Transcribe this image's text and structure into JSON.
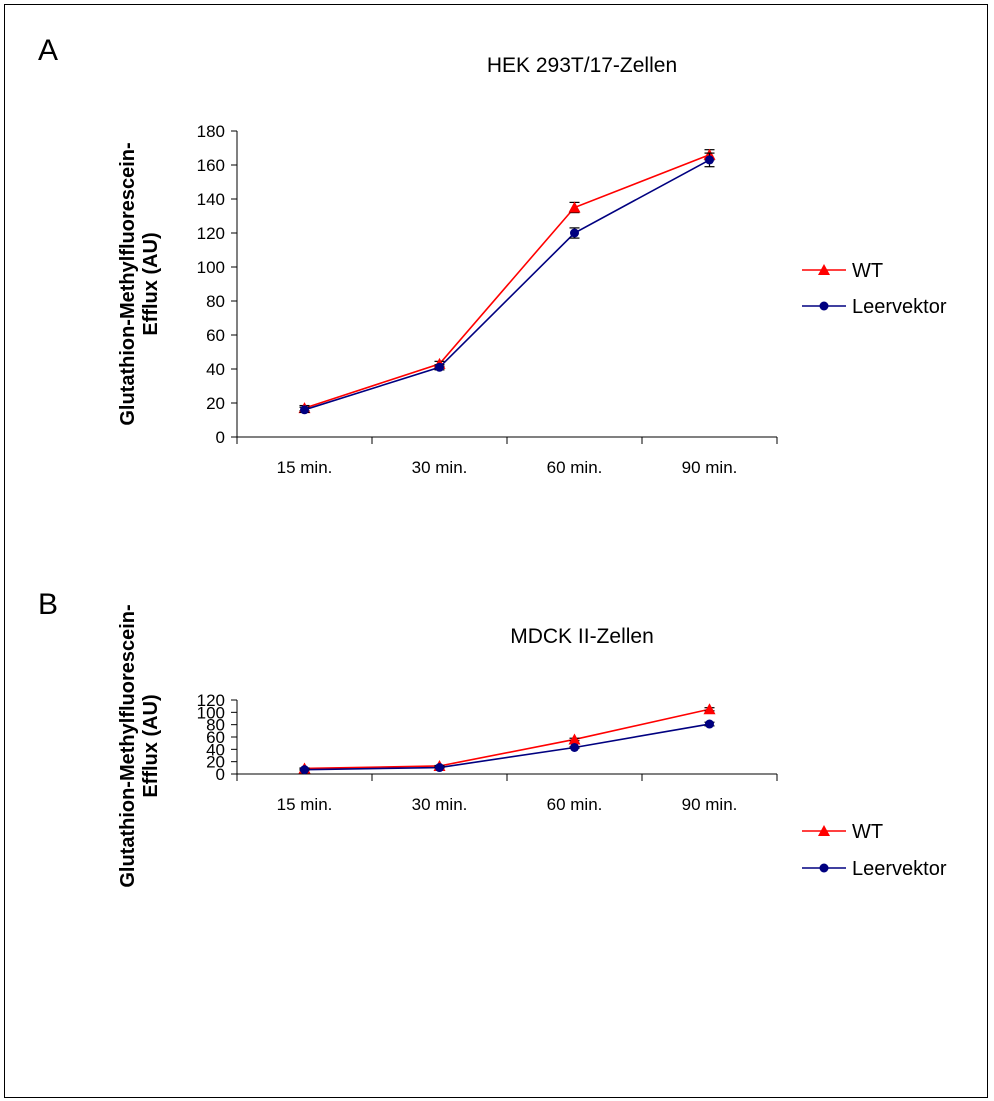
{
  "panels": [
    {
      "letter": "A",
      "legend": [
        "WT",
        "Leervektor"
      ],
      "chart_data": {
        "type": "line",
        "title": "HEK 293T/17-Zellen",
        "ylabel_line1": "Glutathion-Methylfluorescein-",
        "ylabel_line2": "Efflux (AU)",
        "categories": [
          "15 min.",
          "30 min.",
          "60 min.",
          "90 min."
        ],
        "ylim": [
          0,
          180
        ],
        "yticks": [
          0,
          20,
          40,
          60,
          80,
          100,
          120,
          140,
          160,
          180
        ],
        "legend_position": "right",
        "series": [
          {
            "name": "WT",
            "color": "#ff0000",
            "marker": "triangle",
            "values": [
              17,
              43,
              135,
              166
            ],
            "errors": [
              1.5,
              1.5,
              3,
              3
            ]
          },
          {
            "name": "Leervektor",
            "color": "#000080",
            "marker": "circle",
            "values": [
              16,
              41,
              120,
              163
            ],
            "errors": [
              1.5,
              1.5,
              3,
              4
            ]
          }
        ]
      }
    },
    {
      "letter": "B",
      "legend": [
        "WT",
        "Leervektor"
      ],
      "chart_data": {
        "type": "line",
        "title": "MDCK II-Zellen",
        "ylabel_line1": "Glutathion-Methylfluorescein-",
        "ylabel_line2": "Efflux (AU)",
        "categories": [
          "15 min.",
          "30 min.",
          "60 min.",
          "90 min."
        ],
        "ylim": [
          0,
          120
        ],
        "yticks": [
          0,
          20,
          40,
          60,
          80,
          100,
          120
        ],
        "legend_position": "right",
        "series": [
          {
            "name": "WT",
            "color": "#ff0000",
            "marker": "triangle",
            "values": [
              9,
              13,
              56,
              105
            ],
            "errors": [
              0.8,
              0.8,
              2,
              2.5
            ]
          },
          {
            "name": "Leervektor",
            "color": "#000080",
            "marker": "circle",
            "values": [
              7,
              10.5,
              43,
              81
            ],
            "errors": [
              0.8,
              0.8,
              1.2,
              3
            ]
          }
        ]
      }
    }
  ]
}
